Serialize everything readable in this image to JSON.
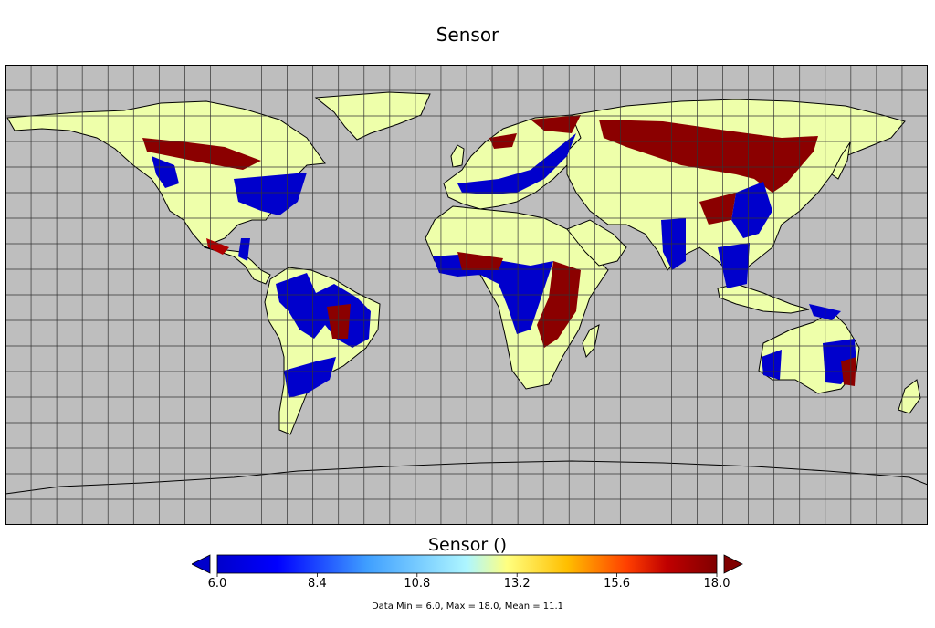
{
  "title": "Sensor",
  "colorbar": {
    "label": "Sensor ()",
    "min": 6.0,
    "max": 18.0,
    "ticks": [
      "6.0",
      "8.4",
      "10.8",
      "13.2",
      "15.6",
      "18.0"
    ],
    "tick_values": [
      6.0,
      8.4,
      10.8,
      13.2,
      15.6,
      18.0
    ],
    "colors": [
      "#00008f",
      "#0000ff",
      "#3f9fff",
      "#aef6ff",
      "#ffff80",
      "#ffbf00",
      "#ff3f00",
      "#c00000",
      "#800000"
    ]
  },
  "stats": "Data Min = 6.0, Max = 18.0, Mean = 11.1",
  "map": {
    "projection": "equirectangular",
    "ocean_color": "#bebebe",
    "land_base_color": "#eeffaa",
    "grid_lon_step_deg": 10,
    "grid_lat_step_deg": 10
  }
}
